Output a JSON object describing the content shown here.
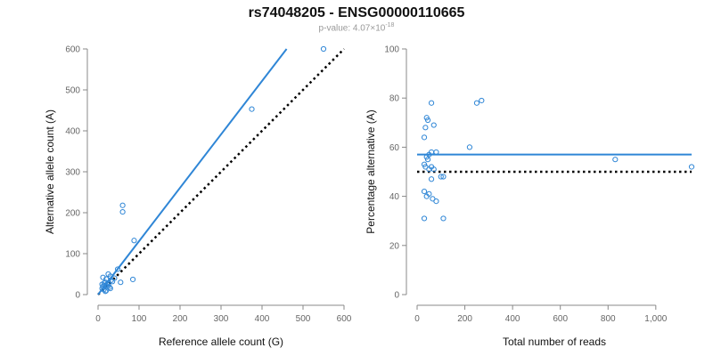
{
  "header": {
    "title": "rs74048205 - ENSG00000110665",
    "pvalue_prefix": "p-value: 4.07×10",
    "pvalue_exponent": "-18"
  },
  "colors": {
    "accent": "#2f86d6",
    "reference_line": "#000000",
    "axis": "#888888"
  },
  "chart_data": [
    {
      "type": "scatter",
      "xlabel": "Reference allele count (G)",
      "ylabel": "Alternative allele count (A)",
      "xlim": [
        0,
        600
      ],
      "ylim": [
        0,
        600
      ],
      "xticks": [
        0,
        100,
        200,
        300,
        400,
        500,
        600
      ],
      "yticks": [
        0,
        100,
        200,
        300,
        400,
        500,
        600
      ],
      "fit_line": {
        "from": [
          0,
          0
        ],
        "to": [
          460,
          600
        ]
      },
      "reference_line": {
        "from": [
          0,
          0
        ],
        "to": [
          600,
          600
        ],
        "style": "dotted"
      },
      "x": [
        550,
        375,
        60,
        60,
        88,
        85,
        48,
        55,
        40,
        30,
        25,
        20,
        35,
        15,
        12,
        22,
        28,
        18,
        10,
        14,
        16,
        20,
        24,
        32,
        26,
        12,
        10,
        30,
        18
      ],
      "y": [
        600,
        453,
        218,
        202,
        132,
        37,
        62,
        30,
        40,
        45,
        50,
        38,
        32,
        28,
        20,
        25,
        18,
        30,
        15,
        12,
        22,
        10,
        20,
        35,
        28,
        42,
        25,
        15,
        8
      ]
    },
    {
      "type": "scatter",
      "xlabel": "Total number of reads",
      "ylabel": "Percentage alternative (A)",
      "xlim": [
        0,
        1150
      ],
      "ylim": [
        0,
        100
      ],
      "xticks": [
        0,
        200,
        400,
        600,
        800,
        1000
      ],
      "xtick_labels": [
        "0",
        "200",
        "400",
        "600",
        "800",
        "1,000"
      ],
      "yticks": [
        0,
        20,
        40,
        60,
        80,
        100
      ],
      "fit_line": {
        "from": [
          0,
          57
        ],
        "to": [
          1150,
          57
        ]
      },
      "reference_line": {
        "from": [
          0,
          50
        ],
        "to": [
          1150,
          50
        ],
        "style": "dotted"
      },
      "x": [
        1150,
        830,
        270,
        250,
        220,
        60,
        40,
        45,
        35,
        70,
        30,
        40,
        60,
        50,
        80,
        45,
        30,
        60,
        50,
        70,
        35,
        100,
        60,
        110,
        30,
        50,
        40,
        80,
        30,
        110,
        65
      ],
      "y": [
        52,
        55,
        79,
        78,
        60,
        78,
        72,
        71,
        68,
        69,
        64,
        56,
        58,
        57,
        58,
        55,
        53,
        52,
        51,
        51,
        52,
        48,
        47,
        48,
        42,
        41,
        40,
        38,
        31,
        31,
        39
      ]
    }
  ]
}
